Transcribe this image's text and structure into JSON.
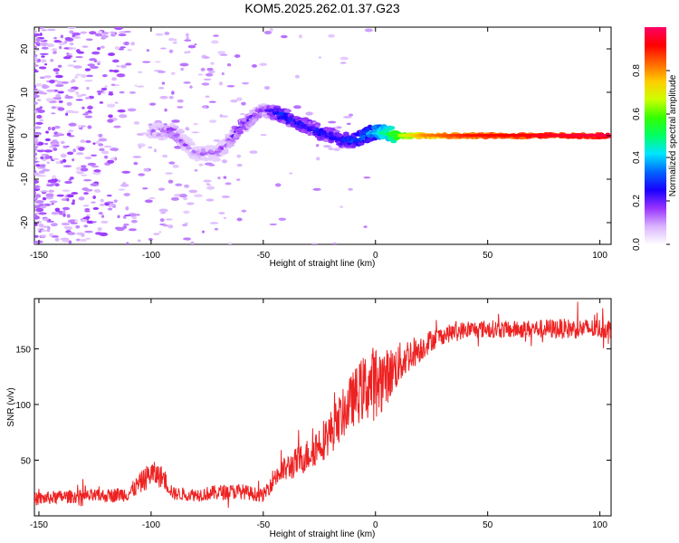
{
  "figure_title": "KOM5.2025.262.01.37.G23",
  "chart_data": [
    {
      "type": "heatmap",
      "title": "KOM5.2025.262.01.37.G23",
      "xlabel": "Height of straight line (km)",
      "ylabel": "Frequency (Hz)",
      "xlim": [
        -152,
        105
      ],
      "ylim": [
        -25,
        25
      ],
      "xticks": [
        -150,
        -100,
        -50,
        0,
        50,
        100
      ],
      "yticks": [
        -20,
        -10,
        0,
        10,
        20
      ],
      "colorbar": {
        "label": "Normalized spectral amplitude",
        "range": [
          0.0,
          1.0
        ],
        "ticks": [
          "0.0",
          "0.2",
          "0.4",
          "0.6",
          "0.8"
        ],
        "colormap": [
          "#ffffff",
          "#d9b3ff",
          "#9933ff",
          "#1a00ff",
          "#0066ff",
          "#00e5ff",
          "#00ff66",
          "#33ff00",
          "#ccff00",
          "#ffcc00",
          "#ff6600",
          "#ff0000",
          "#ff0066"
        ]
      },
      "ridge": {
        "description_x": [
          -100,
          -90,
          -80,
          -70,
          -60,
          -50,
          -42,
          -35,
          -25,
          -15,
          -10,
          -5,
          0,
          10,
          20,
          40,
          60,
          80,
          100,
          105
        ],
        "frequency_hz": [
          1,
          1,
          -4,
          -4,
          2,
          6,
          5,
          3,
          1,
          -1,
          -1,
          0,
          1,
          0,
          0,
          0,
          0,
          0,
          0,
          0
        ],
        "amplitude": [
          0.15,
          0.22,
          0.15,
          0.18,
          0.25,
          0.2,
          0.32,
          0.3,
          0.3,
          0.3,
          0.35,
          0.38,
          0.45,
          0.65,
          0.8,
          0.9,
          0.92,
          0.95,
          0.97,
          0.97
        ]
      }
    },
    {
      "type": "line",
      "xlabel": "Height of straight line (km)",
      "ylabel": "SNR (v/v)",
      "xlim": [
        -152,
        105
      ],
      "ylim": [
        0,
        195
      ],
      "xticks": [
        -150,
        -100,
        -50,
        0,
        50,
        100
      ],
      "yticks": [
        50,
        100,
        150
      ],
      "color": "#ee2222",
      "series": [
        {
          "name": "SNR",
          "x": [
            -152,
            -140,
            -120,
            -110,
            -100,
            -95,
            -90,
            -80,
            -70,
            -60,
            -50,
            -45,
            -40,
            -35,
            -30,
            -25,
            -20,
            -15,
            -10,
            -5,
            0,
            5,
            10,
            15,
            20,
            25,
            30,
            35,
            40,
            50,
            60,
            70,
            80,
            90,
            100,
            105
          ],
          "y": [
            15,
            17,
            18,
            20,
            38,
            35,
            20,
            19,
            21,
            22,
            18,
            35,
            42,
            48,
            55,
            65,
            75,
            90,
            105,
            115,
            120,
            125,
            135,
            145,
            150,
            158,
            162,
            165,
            167,
            168,
            167,
            168,
            168,
            168,
            168,
            168
          ],
          "noise_amplitude": [
            6,
            6,
            6,
            7,
            12,
            10,
            6,
            6,
            7,
            7,
            6,
            10,
            12,
            14,
            15,
            18,
            20,
            22,
            25,
            30,
            35,
            25,
            20,
            16,
            12,
            10,
            8,
            8,
            8,
            8,
            8,
            8,
            9,
            9,
            9,
            9
          ]
        }
      ]
    }
  ]
}
